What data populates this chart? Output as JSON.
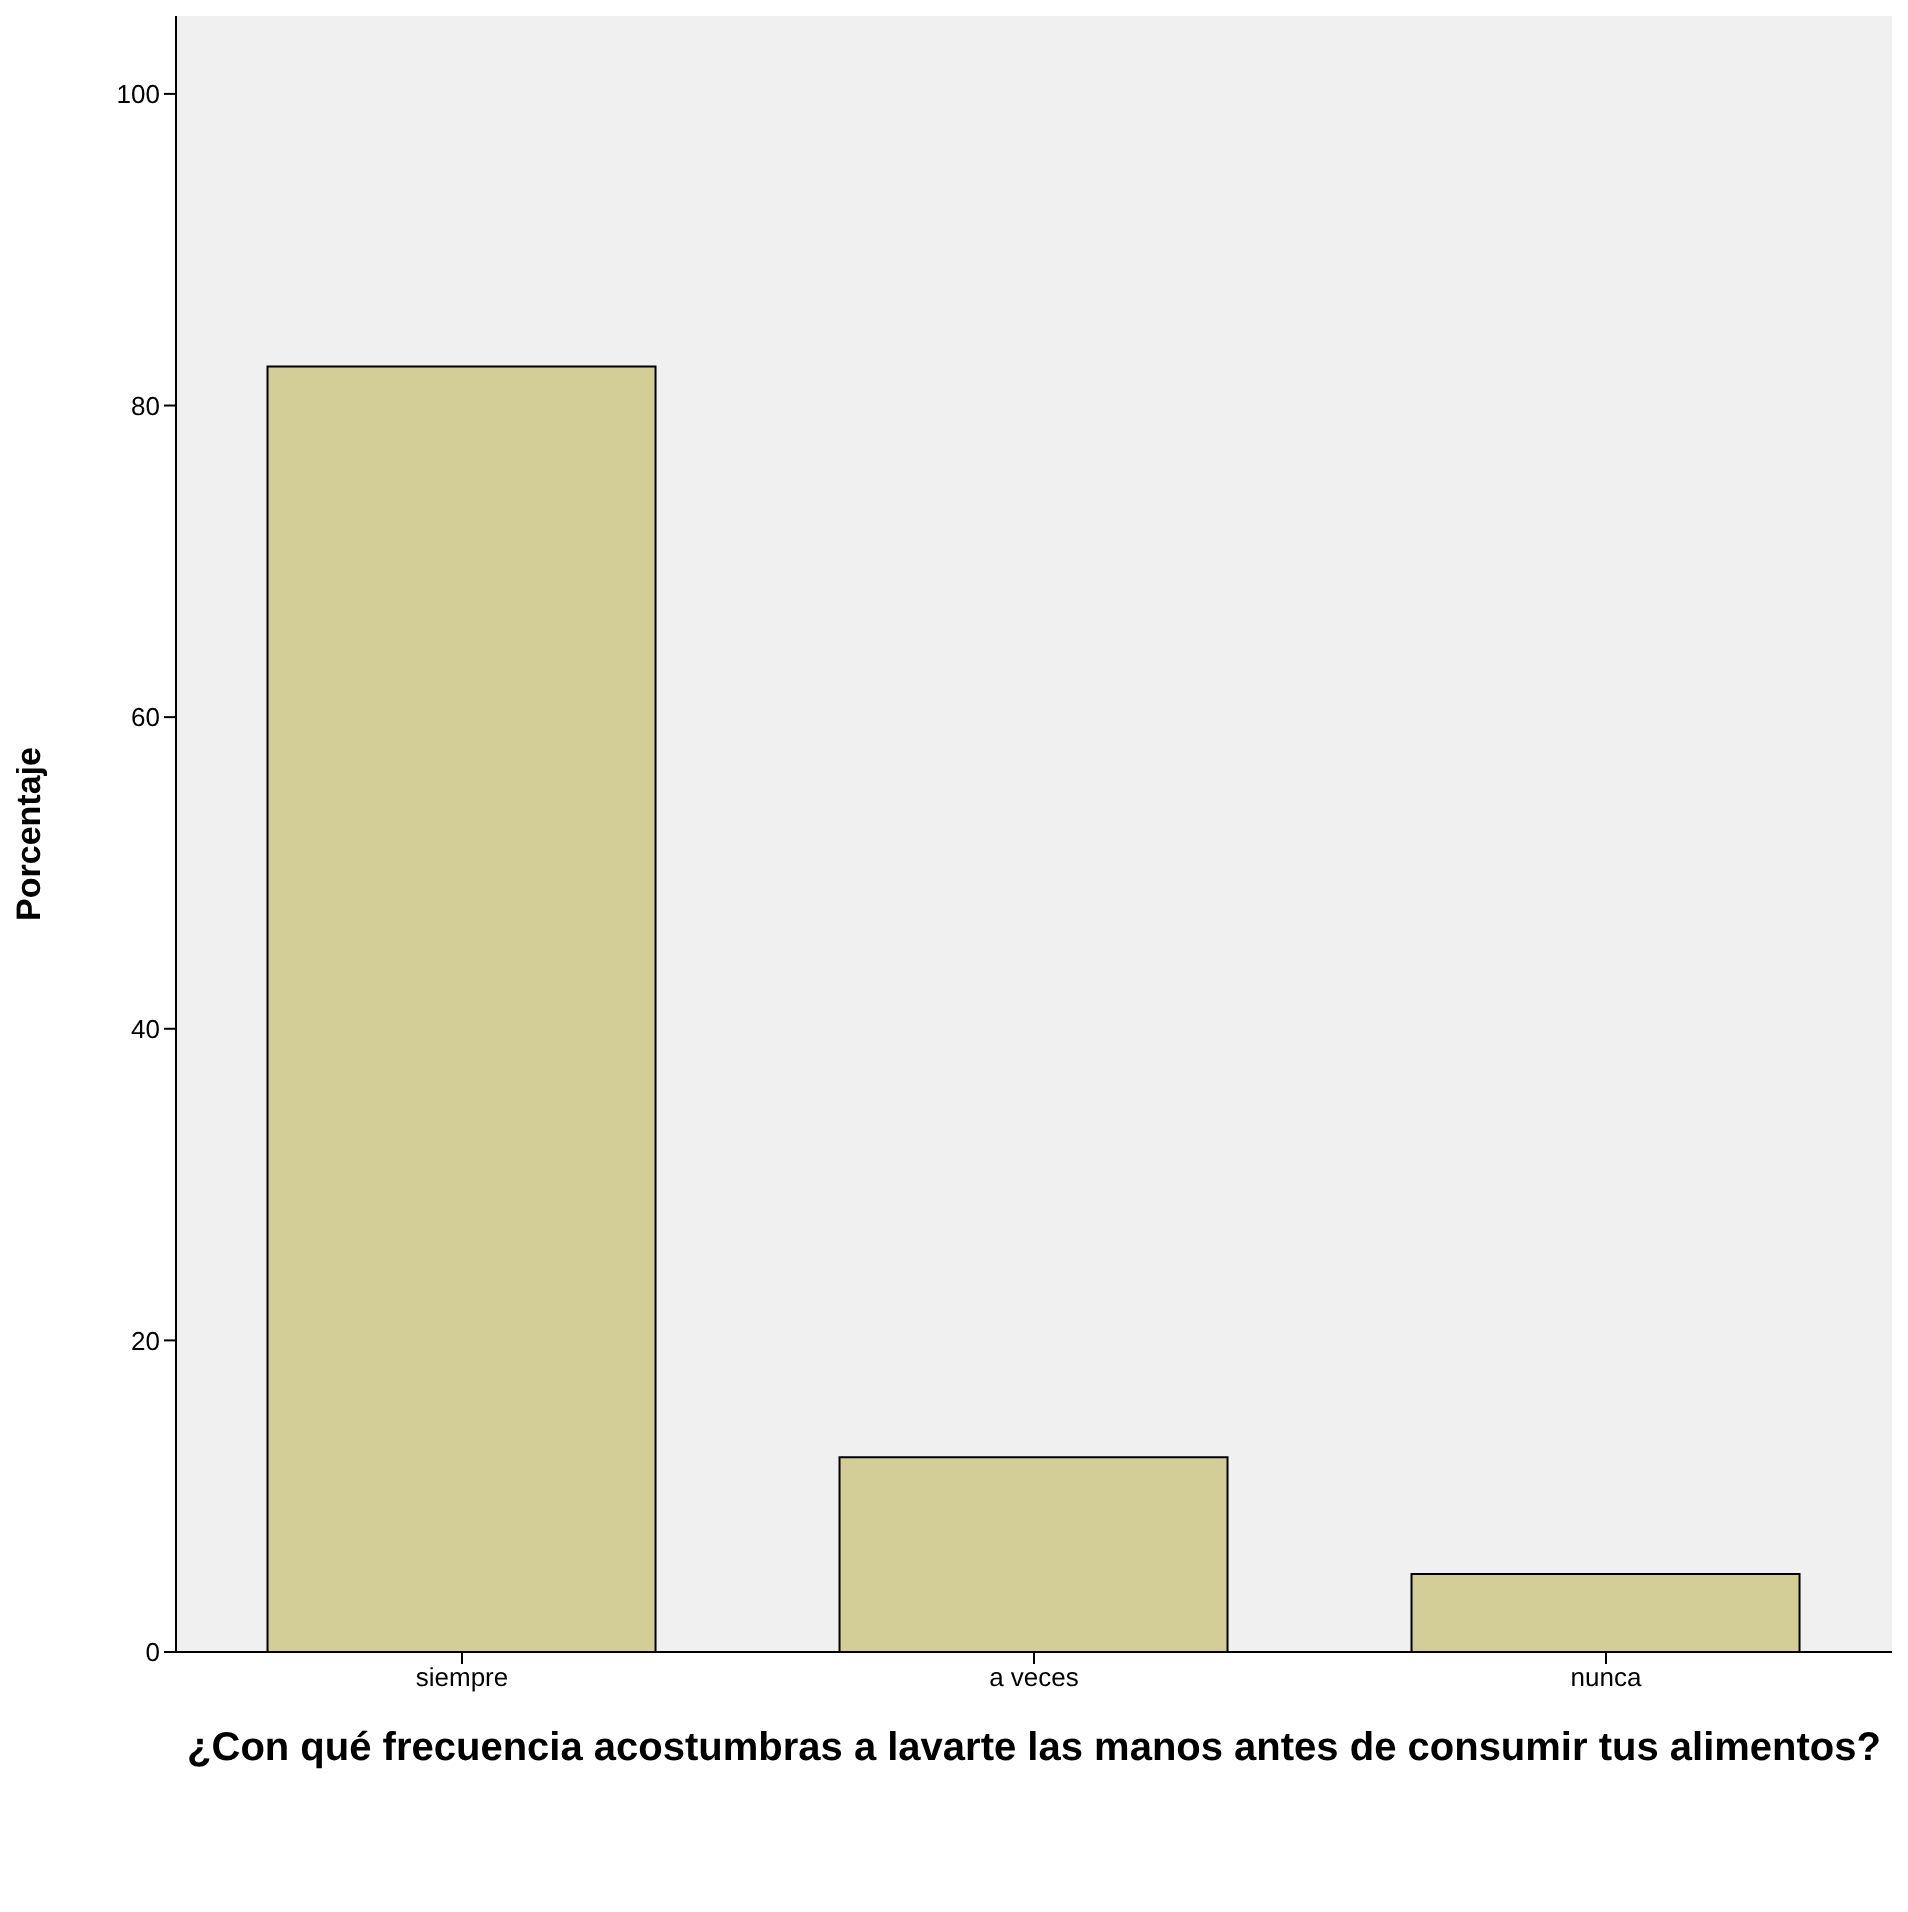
{
  "chart_data": {
    "type": "bar",
    "xlabel": "¿Con qué frecuencia acostumbras a lavarte las manos antes de consumir tus alimentos?",
    "ylabel": "Porcentaje",
    "categories": [
      "siempre",
      "a veces",
      "nunca"
    ],
    "values": [
      82.5,
      12.5,
      5
    ],
    "color": "#d3ce97",
    "ylim": [
      0,
      105
    ],
    "yticks": [
      0,
      20,
      40,
      60,
      80,
      100
    ],
    "grid": false,
    "legend": false
  }
}
